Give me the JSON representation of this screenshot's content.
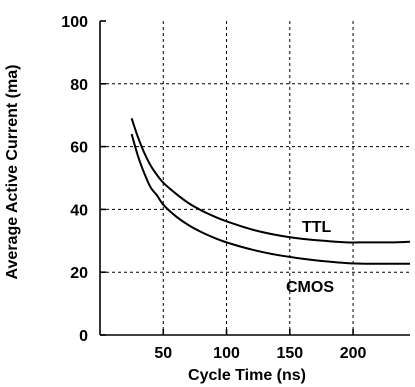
{
  "chart_data": {
    "type": "line",
    "title": "",
    "xlabel": "Cycle Time (ns)",
    "ylabel": "Average Active Current (ma)",
    "xlim": [
      0,
      245
    ],
    "ylim": [
      0,
      100
    ],
    "x_ticks": [
      50,
      100,
      150,
      200
    ],
    "y_ticks": [
      0,
      20,
      40,
      60,
      80,
      100
    ],
    "grid": true,
    "series": [
      {
        "name": "TTL",
        "color": "#000000",
        "x": [
          25,
          30,
          35,
          40,
          45,
          50,
          60,
          70,
          80,
          90,
          100,
          120,
          140,
          160,
          180,
          195,
          210,
          230,
          245
        ],
        "y": [
          69,
          63,
          58,
          54,
          51,
          48.5,
          45,
          42,
          39.7,
          37.8,
          36.2,
          33.6,
          31.8,
          30.6,
          29.9,
          29.5,
          29.5,
          29.5,
          29.7
        ]
      },
      {
        "name": "CMOS",
        "color": "#000000",
        "x": [
          25,
          30,
          35,
          40,
          45,
          50,
          60,
          70,
          80,
          90,
          100,
          120,
          140,
          160,
          180,
          195,
          210,
          230,
          245
        ],
        "y": [
          64,
          57,
          51.5,
          47,
          44.5,
          41.5,
          37.8,
          35,
          32.8,
          31,
          29.5,
          27.2,
          25.5,
          24.3,
          23.4,
          22.9,
          22.7,
          22.7,
          22.7
        ]
      }
    ]
  }
}
